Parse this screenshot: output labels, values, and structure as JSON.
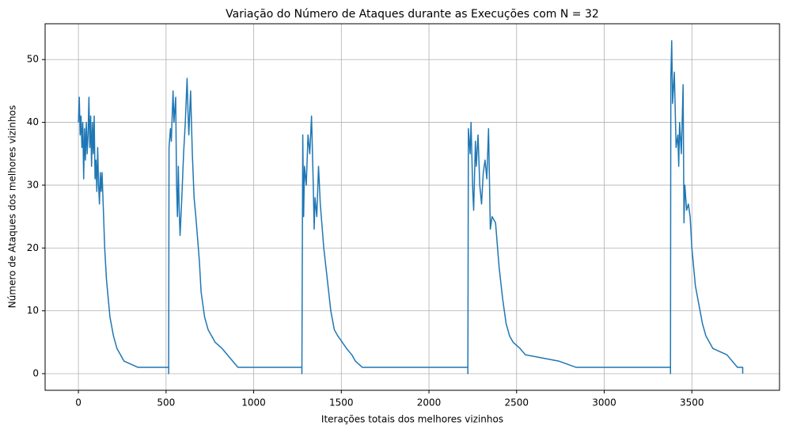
{
  "chart_data": {
    "type": "line",
    "title": "Variação do Número de Ataques durante as Execuções com N = 32",
    "x_label": "Iterações totais dos melhores vizinhos",
    "y_label": "Número de Ataques dos melhores vizinhos",
    "color": "#1f77b4",
    "grid": true,
    "xlim": [
      -190,
      4000
    ],
    "ylim": [
      -2.65,
      55.7
    ],
    "xticks": [
      0,
      500,
      1000,
      1500,
      2000,
      2500,
      3000,
      3500
    ],
    "yticks": [
      0,
      10,
      20,
      30,
      40,
      50
    ],
    "x": [
      0,
      5,
      10,
      15,
      20,
      25,
      30,
      35,
      40,
      45,
      50,
      55,
      60,
      65,
      70,
      75,
      80,
      85,
      90,
      95,
      100,
      105,
      110,
      115,
      120,
      125,
      130,
      135,
      140,
      150,
      160,
      170,
      180,
      200,
      210,
      220,
      240,
      260,
      340,
      515,
      515,
      517,
      525,
      530,
      540,
      545,
      555,
      560,
      565,
      570,
      575,
      580,
      590,
      600,
      610,
      620,
      625,
      630,
      640,
      650,
      660,
      670,
      690,
      700,
      720,
      740,
      760,
      780,
      820,
      880,
      910,
      1275,
      1275,
      1280,
      1285,
      1290,
      1300,
      1310,
      1320,
      1330,
      1340,
      1345,
      1350,
      1360,
      1370,
      1380,
      1400,
      1420,
      1440,
      1460,
      1480,
      1530,
      1560,
      1580,
      1620,
      2222,
      2222,
      2225,
      2235,
      2240,
      2250,
      2255,
      2265,
      2270,
      2280,
      2290,
      2300,
      2310,
      2320,
      2330,
      2340,
      2350,
      2360,
      2380,
      2400,
      2420,
      2440,
      2460,
      2480,
      2520,
      2550,
      2740,
      2840,
      3378,
      3378,
      3380,
      3385,
      3390,
      3400,
      3410,
      3420,
      3425,
      3430,
      3440,
      3450,
      3455,
      3460,
      3470,
      3480,
      3490,
      3500,
      3520,
      3540,
      3560,
      3580,
      3600,
      3620,
      3700,
      3760,
      3790,
      3790
    ],
    "values": [
      40,
      44,
      38,
      41,
      36,
      40,
      31,
      39,
      34,
      40,
      35,
      38,
      44,
      36,
      41,
      33,
      40,
      35,
      41,
      31,
      34,
      29,
      36,
      30,
      27,
      32,
      29,
      32,
      28,
      20,
      15,
      12,
      9,
      6,
      5,
      4,
      3,
      2,
      1,
      1,
      0,
      36,
      39,
      37,
      45,
      40,
      44,
      30,
      25,
      33,
      26,
      22,
      28,
      35,
      40,
      47,
      42,
      38,
      45,
      35,
      28,
      25,
      18,
      13,
      9,
      7,
      6,
      5,
      4,
      2,
      1,
      1,
      0,
      38,
      25,
      33,
      30,
      38,
      35,
      41,
      30,
      23,
      28,
      25,
      33,
      27,
      20,
      15,
      10,
      7,
      6,
      4,
      3,
      2,
      1,
      1,
      0,
      39,
      35,
      40,
      29,
      26,
      37,
      33,
      38,
      30,
      27,
      32,
      34,
      31,
      39,
      23,
      25,
      24,
      17,
      12,
      8,
      6,
      5,
      4,
      3,
      2,
      1,
      1,
      0,
      47,
      53,
      43,
      48,
      36,
      38,
      33,
      40,
      35,
      46,
      24,
      30,
      26,
      27,
      25,
      20,
      14,
      11,
      8,
      6,
      5,
      4,
      3,
      1,
      1,
      0
    ]
  }
}
